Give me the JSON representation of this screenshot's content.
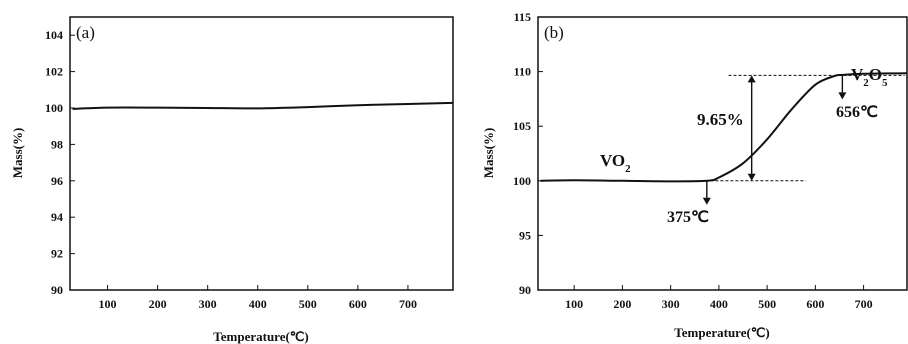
{
  "chart_data": [
    {
      "type": "line",
      "panel_label": "(a)",
      "xlabel": "Temperature(℃)",
      "ylabel": "Mass(%)",
      "xlim": [
        25,
        790
      ],
      "ylim": [
        90,
        105
      ],
      "xticks": [
        100,
        200,
        300,
        400,
        500,
        600,
        700
      ],
      "yticks": [
        90,
        92,
        94,
        96,
        98,
        100,
        102,
        104
      ],
      "series": [
        {
          "x": [
            30,
            100,
            200,
            300,
            400,
            500,
            600,
            700,
            790
          ],
          "y": [
            99.95,
            100.02,
            100.02,
            100.0,
            99.98,
            100.05,
            100.15,
            100.22,
            100.28
          ]
        }
      ]
    },
    {
      "type": "line",
      "panel_label": "(b)",
      "xlabel": "Temperature(℃)",
      "ylabel": "Mass(%)",
      "xlim": [
        25,
        790
      ],
      "ylim": [
        90,
        115
      ],
      "xticks": [
        100,
        200,
        300,
        400,
        500,
        600,
        700
      ],
      "yticks": [
        90,
        95,
        100,
        105,
        110,
        115
      ],
      "series": [
        {
          "x": [
            30,
            100,
            200,
            300,
            375,
            400,
            450,
            500,
            550,
            600,
            640,
            656,
            700,
            790
          ],
          "y": [
            100.0,
            100.05,
            100.0,
            99.95,
            100.0,
            100.3,
            101.6,
            103.8,
            106.5,
            108.8,
            109.6,
            109.7,
            109.8,
            109.85
          ]
        }
      ],
      "annotations": {
        "start_label": "VO2",
        "end_label": "V2O5",
        "mass_change": "9.65%",
        "onset_temp": "375℃",
        "end_temp": "656℃"
      },
      "markers": {
        "onset_x": 375,
        "end_x": 656,
        "low_y": 100,
        "high_y": 109.65
      }
    }
  ]
}
